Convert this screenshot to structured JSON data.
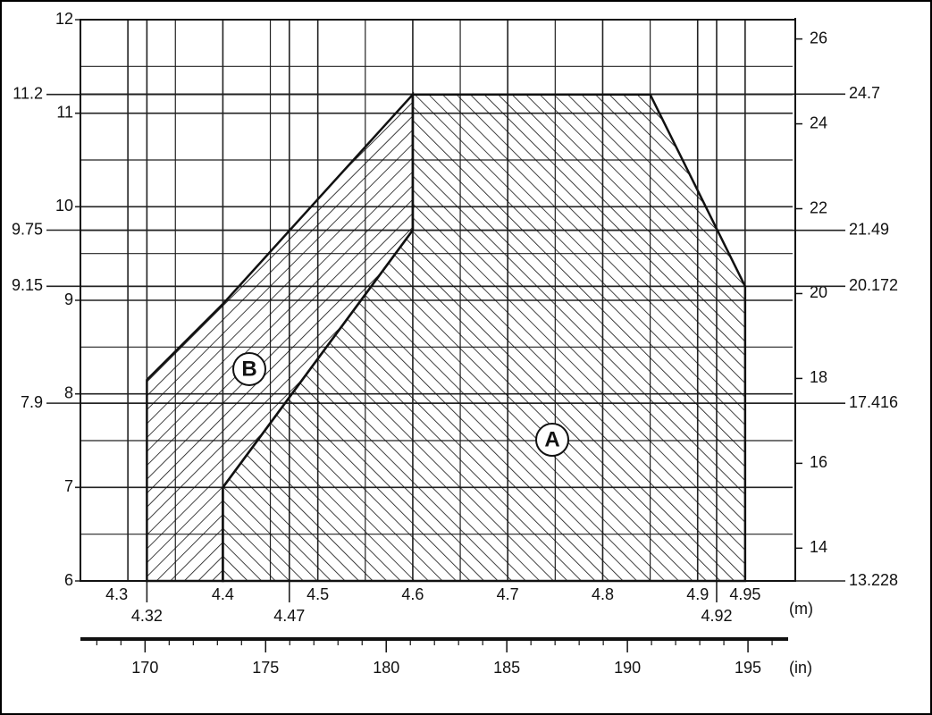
{
  "chart_data": {
    "type": "region",
    "x_unit": "(m)",
    "x2_unit": "(in)",
    "xlim": [
      4.25,
      5.0
    ],
    "xticks": [
      4.3,
      4.4,
      4.5,
      4.6,
      4.7,
      4.8,
      4.9,
      4.95
    ],
    "xticks_extra": [
      4.32,
      4.47,
      4.92
    ],
    "x_minor": [
      4.35,
      4.45,
      4.55,
      4.65,
      4.75,
      4.85
    ],
    "x2lim": [
      167.32,
      196.85
    ],
    "x2ticks": [
      170,
      175,
      180,
      185,
      190,
      195
    ],
    "x2_minor": [
      168,
      169,
      171,
      172,
      173,
      174,
      176,
      177,
      178,
      179,
      181,
      182,
      183,
      184,
      186,
      187,
      188,
      189,
      191,
      192,
      193,
      194,
      196
    ],
    "ylim": [
      6,
      12
    ],
    "yticks": [
      6,
      7,
      8,
      9,
      10,
      11,
      12
    ],
    "yticks_extra": [
      11.2,
      9.75,
      9.15,
      7.9
    ],
    "y_minor": [
      6.5,
      7.5,
      8.5,
      9.5,
      10.5,
      11.5
    ],
    "y2lim": [
      13.228,
      26.455
    ],
    "y2ticks": [
      14,
      16,
      18,
      20,
      22,
      24,
      26
    ],
    "y2ticks_extra": [
      24.7,
      21.49,
      20.172,
      17.416,
      13.228
    ],
    "series": [
      {
        "name": "A",
        "color": "#111111",
        "hatch": "back",
        "x": [
          4.4,
          4.4,
          4.6,
          4.6,
          4.85,
          4.95,
          4.95
        ],
        "y": [
          6,
          7,
          9.75,
          11.2,
          11.2,
          9.15,
          6
        ]
      },
      {
        "name": "B",
        "color": "#111111",
        "hatch": "forward",
        "x": [
          4.32,
          4.32,
          4.4,
          4.6,
          4.6,
          4.4,
          4.4
        ],
        "y": [
          6,
          8.15,
          8.96,
          11.2,
          9.75,
          7,
          6
        ]
      }
    ]
  }
}
